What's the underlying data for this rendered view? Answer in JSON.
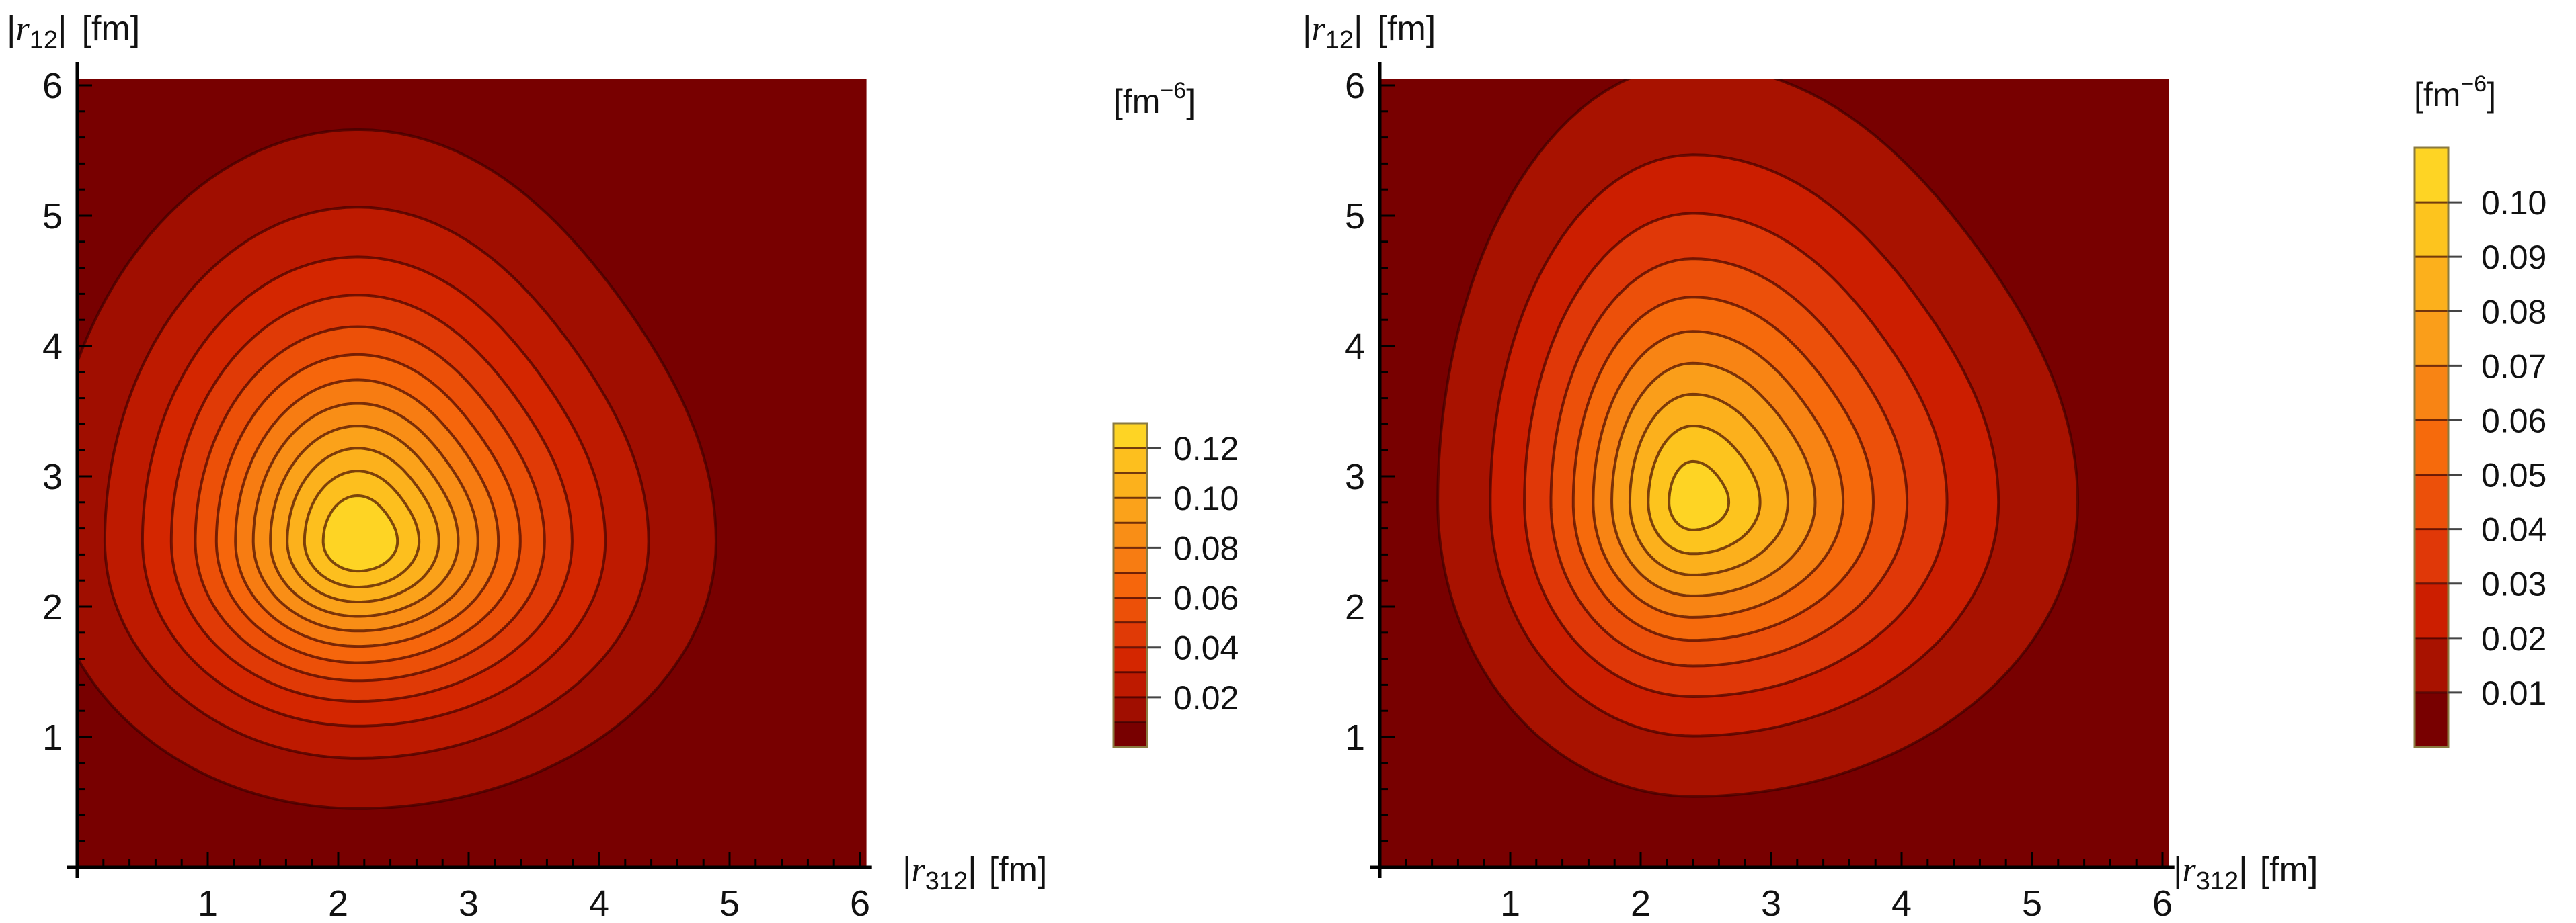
{
  "chart_data": [
    {
      "type": "heatmap",
      "subtype": "filled-contour",
      "xlabel": {
        "open": "|",
        "var": "r",
        "sub": "312",
        "close": "|",
        "unit": "[fm]"
      },
      "ylabel": {
        "open": "|",
        "var": "r",
        "sub": "12",
        "close": "|",
        "unit": "[fm]"
      },
      "xlim": [
        0,
        6
      ],
      "ylim": [
        0,
        6
      ],
      "xticks": [
        "1",
        "2",
        "3",
        "4",
        "5",
        "6"
      ],
      "yticks": [
        "1",
        "2",
        "3",
        "4",
        "5",
        "6"
      ],
      "peak": {
        "x": 2.15,
        "y": 2.5,
        "value": 0.132
      },
      "contour_levels": [
        0.01,
        0.02,
        0.03,
        0.04,
        0.05,
        0.06,
        0.07,
        0.08,
        0.09,
        0.1,
        0.11,
        0.12
      ],
      "colorbar": {
        "label": {
          "open": "[fm",
          "sup": "−6",
          "close": "]"
        },
        "range": [
          0,
          0.13
        ],
        "step": 0.01,
        "ticks": [
          {
            "value": 0.02,
            "label": "0.02"
          },
          {
            "value": 0.04,
            "label": "0.04"
          },
          {
            "value": 0.06,
            "label": "0.06"
          },
          {
            "value": 0.08,
            "label": "0.08"
          },
          {
            "value": 0.1,
            "label": "0.10"
          },
          {
            "value": 0.12,
            "label": "0.12"
          }
        ],
        "band_colors": [
          "#780000",
          "#a00e00",
          "#be1a00",
          "#d42600",
          "#e03a06",
          "#ec5008",
          "#f6660c",
          "#f77c12",
          "#f98e16",
          "#fba21a",
          "#fcb11c",
          "#fdbf1e",
          "#fed424"
        ]
      }
    },
    {
      "type": "heatmap",
      "subtype": "filled-contour",
      "xlabel": {
        "open": "|",
        "var": "r",
        "sub": "312",
        "close": "|",
        "unit": "[fm]"
      },
      "ylabel": {
        "open": "|",
        "var": "r",
        "sub": "12",
        "close": "|",
        "unit": "[fm]"
      },
      "xlim": [
        0,
        6
      ],
      "ylim": [
        0,
        6
      ],
      "xticks": [
        "1",
        "2",
        "3",
        "4",
        "5",
        "6"
      ],
      "yticks": [
        "1",
        "2",
        "3",
        "4",
        "5",
        "6"
      ],
      "peak": {
        "x": 2.4,
        "y": 2.8,
        "value": 0.107
      },
      "contour_levels": [
        0.01,
        0.02,
        0.03,
        0.04,
        0.05,
        0.06,
        0.07,
        0.08,
        0.09,
        0.1
      ],
      "colorbar": {
        "label": {
          "open": "[fm",
          "sup": "−6",
          "close": "]"
        },
        "range": [
          0,
          0.11
        ],
        "step": 0.01,
        "ticks": [
          {
            "value": 0.01,
            "label": "0.01"
          },
          {
            "value": 0.02,
            "label": "0.02"
          },
          {
            "value": 0.03,
            "label": "0.03"
          },
          {
            "value": 0.04,
            "label": "0.04"
          },
          {
            "value": 0.05,
            "label": "0.05"
          },
          {
            "value": 0.06,
            "label": "0.06"
          },
          {
            "value": 0.07,
            "label": "0.07"
          },
          {
            "value": 0.08,
            "label": "0.08"
          },
          {
            "value": 0.09,
            "label": "0.09"
          },
          {
            "value": 0.1,
            "label": "0.10"
          }
        ],
        "band_colors": [
          "#780000",
          "#a81200",
          "#cc1e00",
          "#e03808",
          "#ec500a",
          "#f66a0c",
          "#f88414",
          "#fa9e1a",
          "#fcb01c",
          "#fdc41e",
          "#fed424"
        ]
      }
    }
  ]
}
